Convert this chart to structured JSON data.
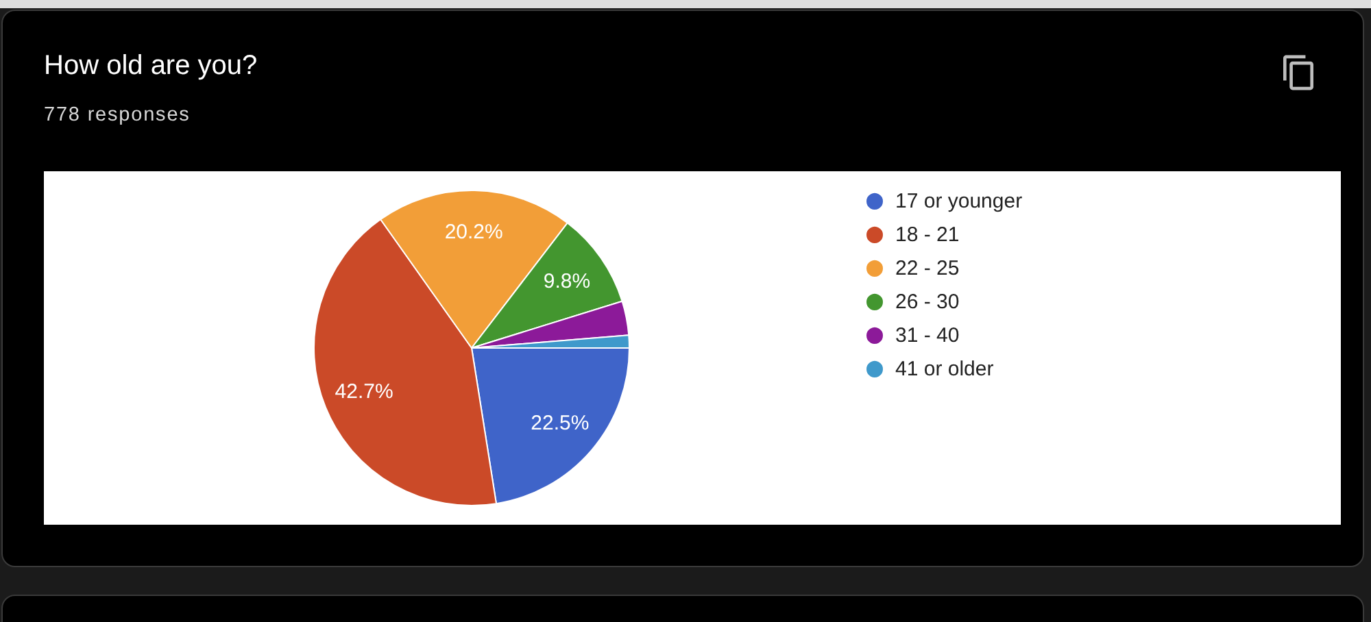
{
  "chart_data": {
    "type": "pie",
    "title": "How old are you?",
    "subtitle": "778 responses",
    "categories": [
      "17 or younger",
      "18 - 21",
      "22 - 25",
      "26 - 30",
      "31 - 40",
      "41 or older"
    ],
    "values": [
      22.5,
      42.7,
      20.2,
      9.8,
      3.5,
      1.3
    ],
    "colors": [
      "#3f64c9",
      "#cb4a28",
      "#f29e38",
      "#43962f",
      "#8c1a99",
      "#3f99cb"
    ],
    "value_labels": [
      "22.5%",
      "42.7%",
      "20.2%",
      "9.8%",
      null,
      null
    ],
    "legend": "right"
  }
}
